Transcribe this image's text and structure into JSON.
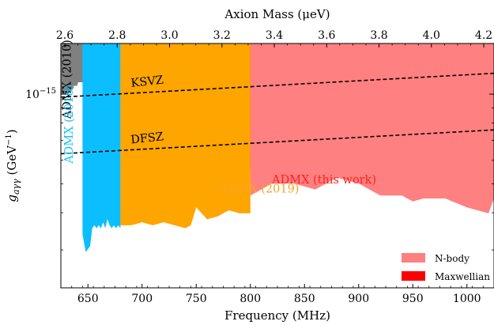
{
  "chart_data": {
    "type": "area",
    "xlabel": "Frequency (MHz)",
    "top_xlabel": "Axion Mass (μeV)",
    "ylabel": "g_aγγ (GeV⁻¹)",
    "ylabel_parts": {
      "symbol": "g",
      "sub": "aγγ",
      "unit_open": " (GeV",
      "unit_sup": "−1",
      "unit_close": ")"
    },
    "xlim": [
      625,
      1025
    ],
    "x_ticks": [
      650,
      700,
      750,
      800,
      850,
      900,
      950,
      1000
    ],
    "top_ticks": [
      2.6,
      2.8,
      3.0,
      3.2,
      3.4,
      3.6,
      3.8,
      4.0,
      4.2
    ],
    "top_tick_labels": [
      "2.6",
      "2.8",
      "3.0",
      "3.2",
      "3.4",
      "3.6",
      "3.8",
      "4.0",
      "4.2"
    ],
    "y_scale": "log",
    "ylim_log10": [
      -15.65,
      -14.83
    ],
    "y_tick_labels": [
      {
        "value_log10": -15,
        "mantissa": "10",
        "exponent": "−15"
      }
    ],
    "grid": false,
    "legend_position": "bottom-right",
    "legend": [
      {
        "label": "N-body",
        "color": "#ff8080"
      },
      {
        "label": "Maxwellian",
        "color": "#ff0000"
      }
    ],
    "series": [
      {
        "name": "ADMX (2010)",
        "color": "#808080",
        "x": [
          625,
          632,
          633,
          636,
          637,
          640,
          641,
          645,
          646
        ],
        "y_log10": [
          -15.0,
          -15.0,
          -14.985,
          -14.985,
          -14.972,
          -14.972,
          -14.96,
          -14.96,
          -14.95
        ]
      },
      {
        "name": "ADMX (2018)",
        "color": "#0bbfff",
        "x": [
          645,
          648,
          650,
          652,
          654,
          656,
          658,
          660,
          662,
          664,
          666,
          668,
          670,
          672,
          674,
          676,
          678,
          680
        ],
        "y_log10": [
          -15.47,
          -15.53,
          -15.52,
          -15.51,
          -15.45,
          -15.44,
          -15.45,
          -15.44,
          -15.45,
          -15.43,
          -15.45,
          -15.42,
          -15.44,
          -15.45,
          -15.44,
          -15.45,
          -15.44,
          -15.45
        ]
      },
      {
        "name": "ADMX (2019)",
        "color": "#ffa500",
        "x": [
          680,
          690,
          700,
          710,
          720,
          730,
          740,
          745,
          750,
          760,
          770,
          780,
          790,
          800
        ],
        "y_log10": [
          -15.44,
          -15.44,
          -15.43,
          -15.44,
          -15.43,
          -15.44,
          -15.45,
          -15.44,
          -15.38,
          -15.42,
          -15.41,
          -15.39,
          -15.4,
          -15.4
        ]
      },
      {
        "name": "ADMX (this work)",
        "color": "#ff0000",
        "x": [
          800,
          810,
          820,
          830,
          840,
          850,
          860,
          870,
          880,
          890,
          900,
          910,
          920,
          930,
          940,
          950,
          955,
          960,
          970,
          980,
          990,
          1000,
          1010,
          1020,
          1025
        ],
        "y_log10": [
          -15.26,
          -15.23,
          -15.22,
          -15.21,
          -15.2,
          -15.2,
          -15.19,
          -15.2,
          -15.19,
          -15.21,
          -15.2,
          -15.22,
          -15.22,
          -15.22,
          -15.23,
          -15.24,
          -15.24,
          -15.27,
          -15.27,
          -15.26,
          -15.26,
          -15.25,
          -15.24,
          -15.22,
          -15.21
        ]
      },
      {
        "name": "N-body",
        "color": "#ff8080",
        "x": [
          800,
          820,
          840,
          860,
          880,
          900,
          920,
          940,
          950,
          960,
          980,
          1000,
          1020,
          1025
        ],
        "y_log10": [
          -15.34,
          -15.3,
          -15.3,
          -15.32,
          -15.28,
          -15.3,
          -15.34,
          -15.34,
          -15.36,
          -15.35,
          -15.35,
          -15.38,
          -15.4,
          -15.35
        ]
      }
    ],
    "lines": [
      {
        "name": "KSVZ",
        "style": "dashed",
        "color": "#000000",
        "x": [
          625,
          1025
        ],
        "y_log10": [
          -15.01,
          -14.93
        ]
      },
      {
        "name": "DFSZ",
        "style": "dashed",
        "color": "#000000",
        "x": [
          625,
          1025
        ],
        "y_log10": [
          -15.2,
          -15.12
        ]
      }
    ],
    "annotations": [
      {
        "text": "KSVZ",
        "x": 705,
        "y_log10": -14.97,
        "color": "#000000",
        "rotation": -6,
        "anchor": "middle"
      },
      {
        "text": "DFSZ",
        "x": 705,
        "y_log10": -15.16,
        "color": "#000000",
        "rotation": -6,
        "anchor": "middle"
      },
      {
        "text": "ADMX (2010)",
        "x": 634,
        "y_log10": -14.95,
        "color": "#000000",
        "rotation": -90,
        "anchor": "middle"
      },
      {
        "text": "ADMX (2018)",
        "x": 636,
        "y_log10": -15.1,
        "color": "#19c3f5",
        "rotation": -90,
        "anchor": "middle"
      },
      {
        "text": "ADMX (2019)",
        "x": 772,
        "y_log10": -15.33,
        "color": "#f5a623",
        "rotation": 0,
        "anchor": "start"
      },
      {
        "text": "ADMX (this work)",
        "x": 820,
        "y_log10": -15.3,
        "color": "#ff2020",
        "rotation": 0,
        "anchor": "start"
      }
    ]
  }
}
